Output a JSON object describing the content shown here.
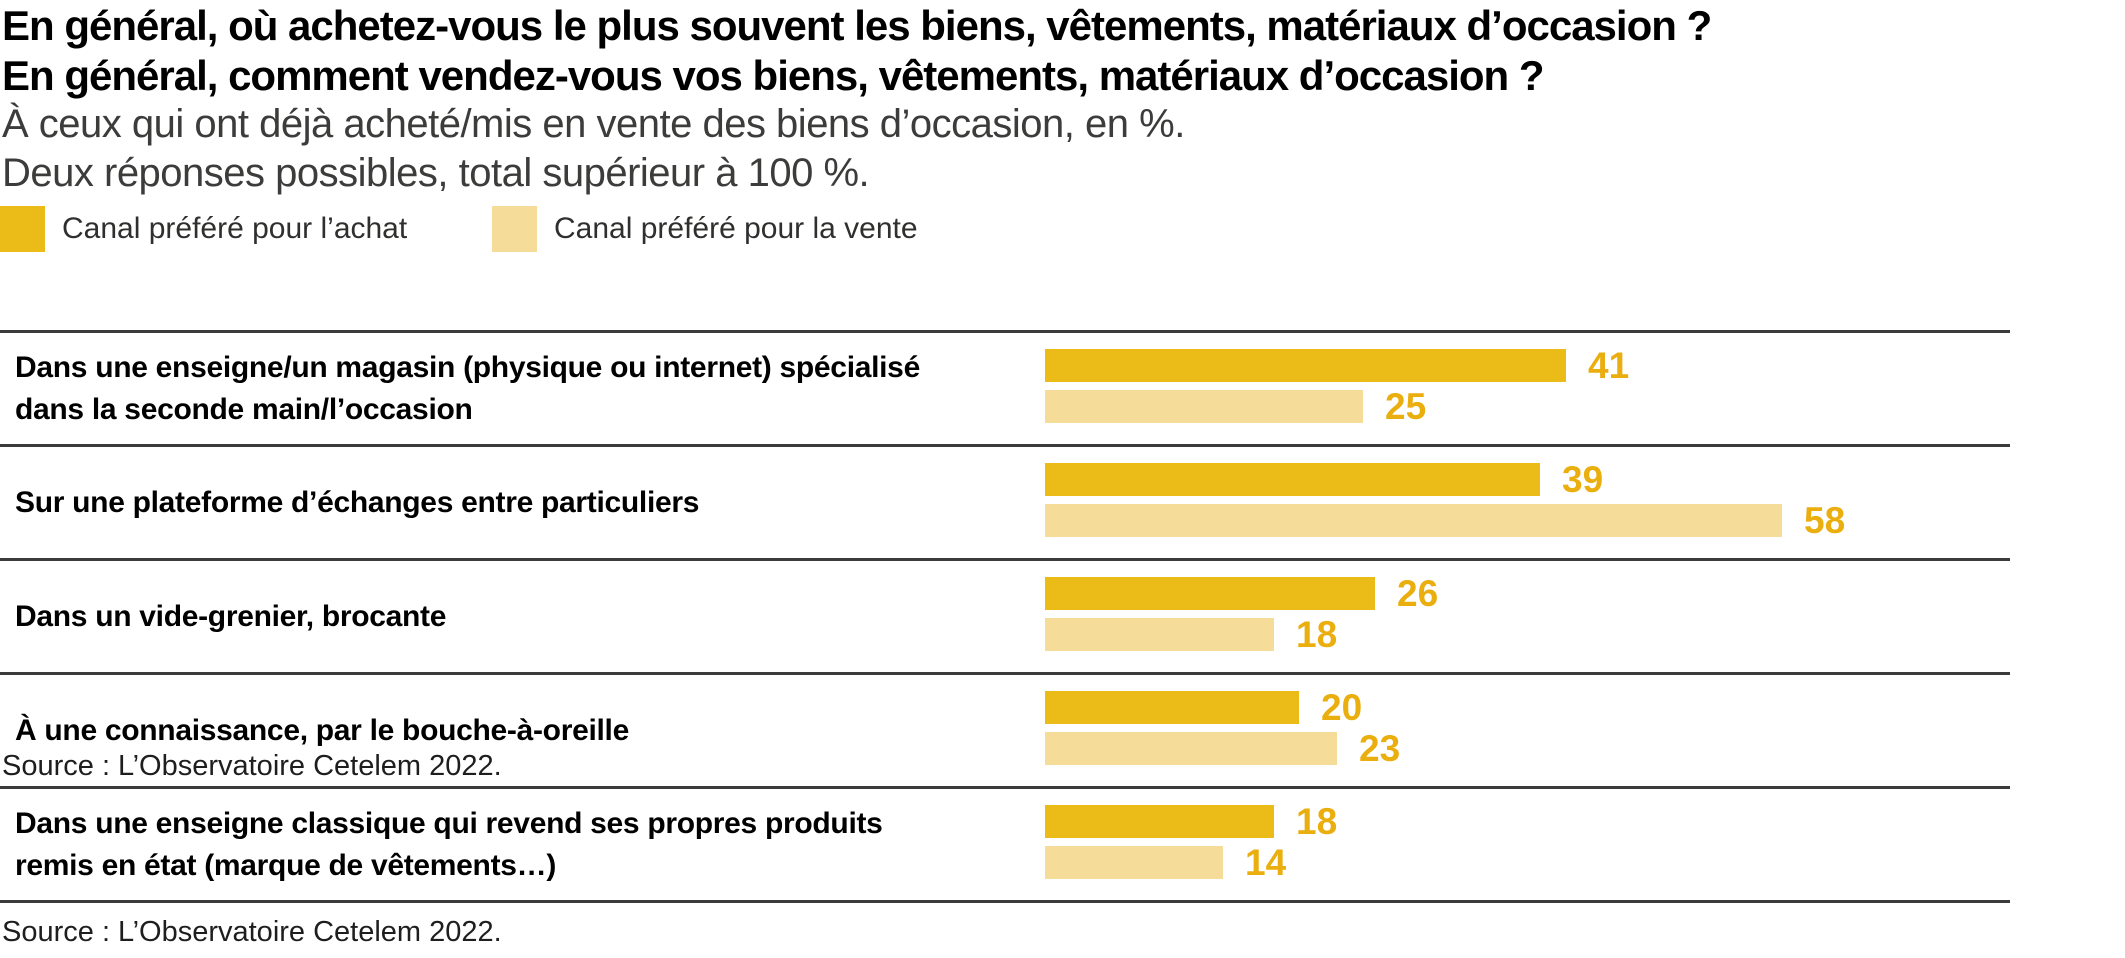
{
  "chart_data": {
    "type": "bar",
    "orientation": "horizontal",
    "title": "En général, où achetez-vous le plus souvent les biens, vêtements, matériaux d’occasion ?",
    "title_line2": "En général, comment vendez-vous vos biens, vêtements, matériaux d’occasion ?",
    "subtitle": "À ceux qui ont déjà acheté/mis en vente des biens d’occasion, en %.",
    "subtitle_line2": "Deux réponses possibles, total supérieur à 100 %.",
    "unit": "%",
    "xlim": [
      0,
      76
    ],
    "grid": false,
    "legend_position": "top-left",
    "legend": [
      "Canal préféré pour l’achat",
      "Canal préféré pour la vente"
    ],
    "colors": {
      "achat": "#EBBB17",
      "vente": "#F5DC99",
      "value_labels": "#EAAE0F",
      "separator": "#3B3B3B"
    },
    "categories": [
      "Dans une enseigne/un magasin (physique ou internet) spécialisé dans la seconde main/l’occasion",
      "Sur une plateforme d’échanges entre particuliers",
      "Dans un vide-grenier, brocante",
      "À une connaissance, par le bouche-à-oreille",
      "Dans une enseigne classique qui revend ses propres produits remis en état (marque de vêtements…)"
    ],
    "series": [
      {
        "name": "Canal préféré pour l’achat",
        "color": "#EBBB17",
        "values": [
          41,
          39,
          26,
          20,
          18
        ]
      },
      {
        "name": "Canal préféré pour la vente",
        "color": "#F5DC99",
        "values": [
          25,
          58,
          18,
          23,
          14
        ]
      }
    ],
    "rows": [
      {
        "label_lines": [
          "Dans une enseigne/un magasin (physique ou internet) spécialisé",
          "dans la seconde main/l’occasion"
        ],
        "achat": 41,
        "vente": 25
      },
      {
        "label_lines": [
          "Sur une plateforme d’échanges entre particuliers"
        ],
        "achat": 39,
        "vente": 58
      },
      {
        "label_lines": [
          "Dans un vide-grenier, brocante"
        ],
        "achat": 26,
        "vente": 18
      },
      {
        "label_lines": [
          "À une connaissance, par le bouche-à-oreille"
        ],
        "achat": 20,
        "vente": 23
      },
      {
        "label_lines": [
          "Dans une enseigne classique qui revend ses propres produits",
          "remis en état (marque de vêtements…)"
        ],
        "achat": 18,
        "vente": 14
      }
    ],
    "inline_source": "Source : L’Observatoire Cetelem 2022.",
    "source": "Source : L’Observatoire Cetelem 2022."
  }
}
